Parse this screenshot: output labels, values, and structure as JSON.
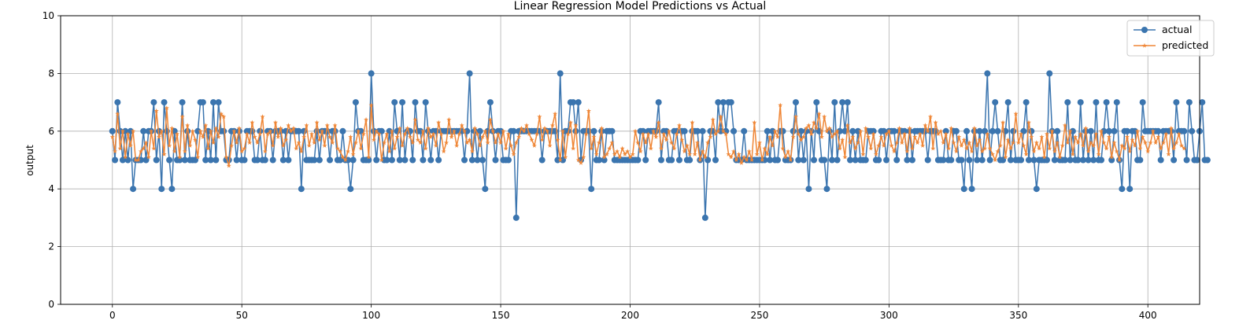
{
  "chart_data": {
    "type": "line",
    "title": "Linear Regression Model Predictions vs Actual",
    "xlabel": "",
    "ylabel": "output",
    "xlim": [
      -20,
      420
    ],
    "ylim": [
      0,
      10
    ],
    "xticks": [
      0,
      50,
      100,
      150,
      200,
      250,
      300,
      350,
      400
    ],
    "yticks": [
      0,
      2,
      4,
      6,
      8,
      10
    ],
    "grid": true,
    "legend_position": "top-right",
    "colors": {
      "actual": "#3b75af",
      "predicted": "#ef8636"
    },
    "series": [
      {
        "name": "actual",
        "marker": "circle",
        "values": [
          6,
          5,
          7,
          6,
          5,
          6,
          5,
          6,
          4,
          5,
          5,
          5,
          6,
          5,
          6,
          6,
          7,
          5,
          6,
          4,
          7,
          6,
          5,
          4,
          6,
          5,
          5,
          7,
          5,
          6,
          5,
          5,
          5,
          6,
          7,
          7,
          5,
          6,
          5,
          7,
          5,
          7,
          6,
          6,
          5,
          5,
          6,
          6,
          5,
          6,
          5,
          5,
          6,
          6,
          6,
          5,
          5,
          6,
          5,
          5,
          6,
          6,
          5,
          6,
          6,
          6,
          5,
          6,
          5,
          6,
          6,
          6,
          6,
          4,
          6,
          5,
          5,
          5,
          5,
          6,
          5,
          6,
          6,
          6,
          5,
          6,
          6,
          5,
          5,
          6,
          5,
          5,
          4,
          5,
          7,
          6,
          6,
          5,
          5,
          5,
          8,
          6,
          5,
          6,
          6,
          5,
          5,
          6,
          5,
          7,
          6,
          5,
          7,
          5,
          6,
          6,
          5,
          7,
          6,
          6,
          5,
          7,
          6,
          5,
          6,
          6,
          5,
          6,
          6,
          6,
          6,
          6,
          6,
          6,
          6,
          6,
          5,
          6,
          8,
          5,
          6,
          5,
          6,
          5,
          4,
          6,
          7,
          6,
          5,
          6,
          6,
          5,
          5,
          5,
          6,
          6,
          3,
          6,
          6,
          6,
          6,
          6,
          6,
          6,
          6,
          6,
          5,
          6,
          6,
          6,
          6,
          6,
          5,
          8,
          5,
          6,
          6,
          7,
          7,
          6,
          7,
          5,
          6,
          6,
          6,
          4,
          6,
          5,
          5,
          6,
          5,
          6,
          6,
          6,
          5,
          5,
          5,
          5,
          5,
          5,
          5,
          5,
          5,
          5,
          6,
          6,
          5,
          6,
          6,
          6,
          6,
          7,
          5,
          6,
          6,
          5,
          5,
          6,
          6,
          5,
          6,
          6,
          5,
          5,
          6,
          6,
          6,
          5,
          6,
          3,
          5,
          6,
          6,
          5,
          7,
          6,
          7,
          6,
          7,
          7,
          6,
          5,
          5,
          5,
          6,
          5,
          5,
          5,
          5,
          5,
          5,
          5,
          5,
          6,
          5,
          6,
          5,
          5,
          6,
          6,
          5,
          5,
          5,
          6,
          7,
          5,
          6,
          5,
          6,
          4,
          6,
          5,
          7,
          6,
          5,
          5,
          4,
          6,
          5,
          7,
          5,
          6,
          7,
          6,
          7,
          5,
          6,
          5,
          6,
          5,
          5,
          5,
          6,
          6,
          6,
          5,
          5,
          6,
          6,
          5,
          6,
          6,
          6,
          5,
          6,
          6,
          6,
          5,
          6,
          5,
          6,
          6,
          6,
          6,
          6,
          5,
          6,
          6,
          6,
          5,
          5,
          5,
          6,
          5,
          5,
          6,
          6,
          5,
          5,
          4,
          6,
          5,
          4,
          6,
          5,
          6,
          5,
          6,
          8,
          5,
          6,
          7,
          6,
          5,
          5,
          6,
          7,
          5,
          6,
          5,
          5,
          5,
          6,
          7,
          5,
          6,
          5,
          4,
          5,
          5,
          5,
          5,
          8,
          6,
          5,
          6,
          5,
          5,
          5,
          7,
          5,
          6,
          5,
          5,
          7,
          5,
          6,
          5,
          6,
          5,
          7,
          5,
          5,
          6,
          7,
          6,
          5,
          6,
          7,
          5,
          4,
          6,
          6,
          4,
          6,
          6,
          5,
          5,
          7,
          6,
          6,
          6,
          6,
          6,
          6,
          5,
          6,
          6,
          6,
          6,
          5,
          7,
          6,
          6,
          6,
          5,
          7,
          6,
          5,
          5,
          6,
          7,
          5,
          5
        ]
      },
      {
        "name": "predicted",
        "marker": "star",
        "values": [
          5.8,
          5.3,
          6.6,
          5.4,
          6.0,
          5.1,
          5.9,
          5.5,
          6.0,
          5.0,
          5.0,
          5.3,
          5.4,
          5.6,
          5.1,
          6.0,
          5.4,
          6.7,
          5.8,
          6.0,
          5.2,
          6.8,
          5.5,
          6.1,
          5.3,
          5.9,
          5.1,
          6.5,
          5.3,
          6.2,
          5.5,
          6.0,
          5.7,
          5.1,
          6.0,
          5.8,
          6.2,
          5.4,
          6.0,
          5.6,
          6.1,
          5.8,
          6.6,
          6.5,
          5.1,
          4.8,
          5.5,
          6.0,
          5.6,
          6.1,
          5.3,
          5.4,
          5.9,
          5.6,
          6.3,
          5.8,
          5.6,
          5.9,
          6.5,
          5.3,
          5.9,
          6.0,
          5.5,
          6.3,
          5.8,
          6.1,
          5.5,
          5.7,
          6.2,
          6.0,
          6.1,
          5.4,
          5.6,
          5.3,
          5.8,
          6.2,
          5.5,
          5.9,
          5.6,
          6.3,
          5.7,
          6.0,
          5.5,
          6.2,
          5.8,
          5.6,
          6.2,
          5.4,
          5.3,
          5.1,
          5.0,
          5.3,
          5.8,
          5.2,
          5.6,
          6.0,
          5.4,
          5.9,
          6.4,
          5.1,
          6.9,
          5.7,
          6.0,
          5.9,
          5.0,
          5.6,
          5.9,
          5.3,
          6.0,
          5.4,
          5.8,
          6.1,
          5.5,
          5.9,
          6.1,
          5.8,
          5.6,
          6.4,
          5.7,
          5.6,
          6.0,
          5.4,
          6.1,
          5.8,
          5.9,
          5.5,
          6.3,
          5.9,
          5.3,
          5.6,
          6.4,
          5.8,
          6.0,
          5.5,
          5.9,
          6.2,
          6.0,
          5.6,
          5.7,
          5.3,
          6.1,
          5.9,
          5.5,
          5.8,
          6.0,
          5.6,
          6.4,
          6.0,
          5.6,
          5.9,
          5.6,
          6.0,
          5.4,
          5.9,
          5.5,
          5.2,
          5.6,
          5.8,
          6.1,
          6.0,
          6.2,
          5.9,
          5.7,
          5.5,
          5.9,
          6.5,
          5.7,
          6.1,
          6.0,
          5.5,
          6.2,
          6.6,
          5.7,
          5.0,
          6.0,
          5.1,
          5.9,
          6.3,
          5.4,
          6.2,
          5.0,
          4.9,
          5.1,
          5.9,
          6.7,
          5.4,
          5.8,
          5.2,
          5.6,
          6.1,
          5.1,
          5.2,
          5.4,
          5.6,
          5.2,
          5.3,
          5.1,
          5.4,
          5.2,
          5.3,
          5.1,
          5.2,
          6.0,
          5.6,
          5.3,
          5.9,
          5.6,
          5.9,
          5.4,
          6.0,
          5.8,
          6.3,
          5.4,
          5.9,
          5.7,
          6.0,
          5.6,
          5.4,
          5.9,
          6.2,
          5.7,
          5.3,
          5.5,
          5.2,
          6.3,
          5.2,
          5.6,
          5.0,
          5.3,
          5.1,
          5.6,
          5.8,
          6.4,
          5.9,
          6.0,
          6.5,
          6.0,
          5.9,
          5.2,
          5.1,
          5.3,
          5.0,
          5.2,
          4.9,
          5.1,
          5.0,
          5.3,
          5.0,
          6.3,
          5.2,
          5.6,
          5.0,
          5.4,
          5.2,
          5.8,
          5.5,
          6.0,
          5.8,
          6.9,
          5.4,
          5.1,
          5.3,
          5.0,
          5.8,
          6.5,
          5.9,
          5.7,
          5.8,
          6.1,
          6.2,
          5.9,
          6.3,
          6.1,
          6.6,
          5.8,
          6.5,
          6.0,
          6.1,
          5.8,
          5.9,
          6.0,
          5.4,
          5.7,
          5.1,
          6.2,
          5.6,
          5.8,
          5.4,
          5.6,
          6.0,
          5.2,
          6.1,
          5.8,
          5.4,
          5.9,
          5.2,
          5.5,
          5.8,
          5.5,
          5.9,
          6.0,
          5.5,
          5.3,
          5.6,
          6.1,
          5.6,
          5.9,
          5.3,
          6.1,
          5.4,
          5.8,
          5.6,
          5.9,
          5.5,
          6.2,
          6.0,
          6.5,
          5.4,
          6.3,
          5.9,
          6.0,
          5.6,
          5.9,
          5.4,
          6.1,
          5.6,
          5.3,
          5.8,
          5.5,
          5.7,
          5.4,
          5.6,
          5.3,
          6.1,
          5.5,
          5.7,
          5.3,
          5.4,
          5.9,
          5.4,
          5.2,
          5.0,
          5.3,
          5.5,
          6.3,
          5.1,
          5.7,
          5.4,
          5.6,
          6.6,
          5.6,
          5.9,
          5.5,
          5.2,
          6.3,
          5.8,
          5.3,
          5.6,
          5.4,
          5.8,
          5.1,
          5.9,
          5.4,
          6.0,
          5.3,
          5.6,
          5.1,
          5.5,
          6.2,
          5.6,
          6.0,
          5.2,
          5.8,
          5.6,
          5.9,
          5.5,
          6.1,
          5.3,
          5.6,
          5.5,
          5.9,
          5.2,
          6.0,
          5.6,
          5.4,
          5.8,
          5.1,
          5.6,
          5.3,
          5.0,
          5.5,
          5.4,
          5.8,
          5.3,
          5.7,
          5.5,
          6.0,
          5.4,
          5.8,
          5.6,
          5.3,
          5.6,
          6.0,
          5.6,
          5.8,
          5.4,
          5.6,
          5.9,
          5.2,
          6.1,
          5.4,
          5.6,
          5.9,
          5.5,
          5.4
        ]
      }
    ]
  }
}
